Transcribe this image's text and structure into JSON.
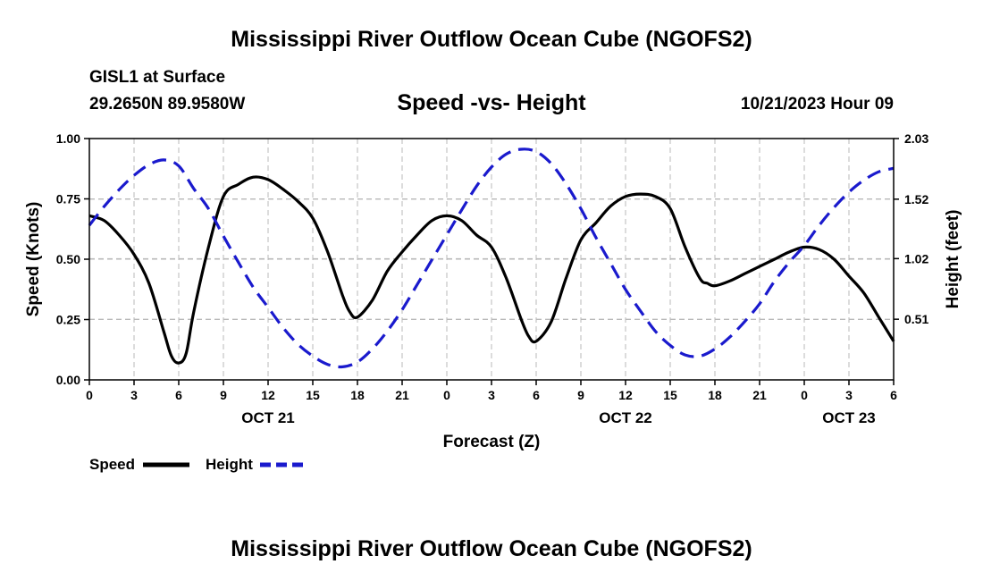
{
  "page": {
    "title_top": "Mississippi River Outflow Ocean Cube (NGOFS2)",
    "title_bottom": "Mississippi River Outflow Ocean Cube (NGOFS2)",
    "station": "GISL1 at Surface",
    "coords": "29.2650N  89.9580W",
    "datetime": "10/21/2023 Hour 09"
  },
  "chart_data": {
    "type": "line",
    "title": "Speed -vs- Height",
    "xlabel": "Forecast (Z)",
    "ylabel": "Speed (Knots)",
    "y2label": "Height (feet)",
    "xlim": [
      0,
      54
    ],
    "ylim": [
      0,
      1
    ],
    "y2lim": [
      0.0,
      2.03
    ],
    "x_ticks": [
      0,
      3,
      6,
      9,
      12,
      15,
      18,
      21,
      24,
      27,
      30,
      33,
      36,
      39,
      42,
      45,
      48,
      51,
      54
    ],
    "x_tick_labels": [
      "0",
      "3",
      "6",
      "9",
      "12",
      "15",
      "18",
      "21",
      "0",
      "3",
      "6",
      "9",
      "12",
      "15",
      "18",
      "21",
      "0",
      "3",
      "6"
    ],
    "date_labels": [
      {
        "x": 12,
        "label": "OCT 21"
      },
      {
        "x": 36,
        "label": "OCT 22"
      },
      {
        "x": 51,
        "label": "OCT 23"
      }
    ],
    "y_ticks": [
      0,
      0.25,
      0.5,
      0.75,
      1.0
    ],
    "y_tick_labels": [
      "0.00",
      "0.25",
      "0.50",
      "0.75",
      "1.00"
    ],
    "y2_ticks": [
      0.51,
      1.02,
      1.52,
      2.03
    ],
    "y2_tick_labels": [
      "0.51",
      "1.02",
      "1.52",
      "2.03"
    ],
    "grid": true,
    "legend": "bottom-left",
    "series": [
      {
        "name": "Speed",
        "axis": "left",
        "color": "#000000",
        "dash": "solid",
        "x": [
          0,
          1,
          2,
          3,
          4,
          5,
          5.5,
          6,
          6.5,
          7,
          8,
          9,
          10,
          11,
          12,
          13,
          14,
          15,
          16,
          17,
          17.5,
          18,
          19,
          20,
          21,
          22,
          23,
          24,
          25,
          26,
          27,
          28,
          29,
          29.5,
          30,
          31,
          32,
          33,
          34,
          35,
          36,
          37,
          38,
          39,
          40,
          41,
          41.5,
          42,
          43,
          44,
          45,
          46,
          47,
          48,
          49,
          50,
          51,
          52,
          53,
          54
        ],
        "values": [
          0.68,
          0.66,
          0.6,
          0.52,
          0.4,
          0.2,
          0.1,
          0.07,
          0.11,
          0.28,
          0.55,
          0.76,
          0.81,
          0.84,
          0.83,
          0.79,
          0.74,
          0.67,
          0.53,
          0.35,
          0.28,
          0.26,
          0.33,
          0.45,
          0.53,
          0.6,
          0.66,
          0.68,
          0.66,
          0.6,
          0.55,
          0.42,
          0.25,
          0.18,
          0.16,
          0.24,
          0.42,
          0.58,
          0.65,
          0.72,
          0.76,
          0.77,
          0.76,
          0.71,
          0.55,
          0.42,
          0.4,
          0.39,
          0.41,
          0.44,
          0.47,
          0.5,
          0.53,
          0.55,
          0.54,
          0.5,
          0.43,
          0.36,
          0.26,
          0.16
        ]
      },
      {
        "name": "Height",
        "axis": "right",
        "color": "#1a1acd",
        "dash": "dashed",
        "x": [
          0,
          1,
          2,
          3,
          4,
          5,
          6,
          7,
          8,
          9,
          10,
          11,
          12,
          13,
          14,
          15,
          16,
          17,
          18,
          19,
          20,
          21,
          22,
          23,
          24,
          25,
          26,
          27,
          28,
          29,
          30,
          31,
          32,
          33,
          34,
          35,
          36,
          37,
          38,
          39,
          40,
          41,
          42,
          43,
          44,
          45,
          46,
          47,
          48,
          49,
          50,
          51,
          52,
          53,
          54
        ],
        "values": [
          1.3,
          1.46,
          1.6,
          1.72,
          1.81,
          1.85,
          1.8,
          1.61,
          1.44,
          1.21,
          0.99,
          0.78,
          0.61,
          0.44,
          0.3,
          0.2,
          0.13,
          0.11,
          0.15,
          0.26,
          0.41,
          0.59,
          0.8,
          1.01,
          1.22,
          1.43,
          1.63,
          1.79,
          1.9,
          1.94,
          1.92,
          1.82,
          1.65,
          1.44,
          1.2,
          0.98,
          0.76,
          0.58,
          0.41,
          0.29,
          0.21,
          0.2,
          0.26,
          0.36,
          0.49,
          0.64,
          0.83,
          0.99,
          1.13,
          1.3,
          1.45,
          1.58,
          1.68,
          1.75,
          1.78
        ]
      }
    ]
  }
}
